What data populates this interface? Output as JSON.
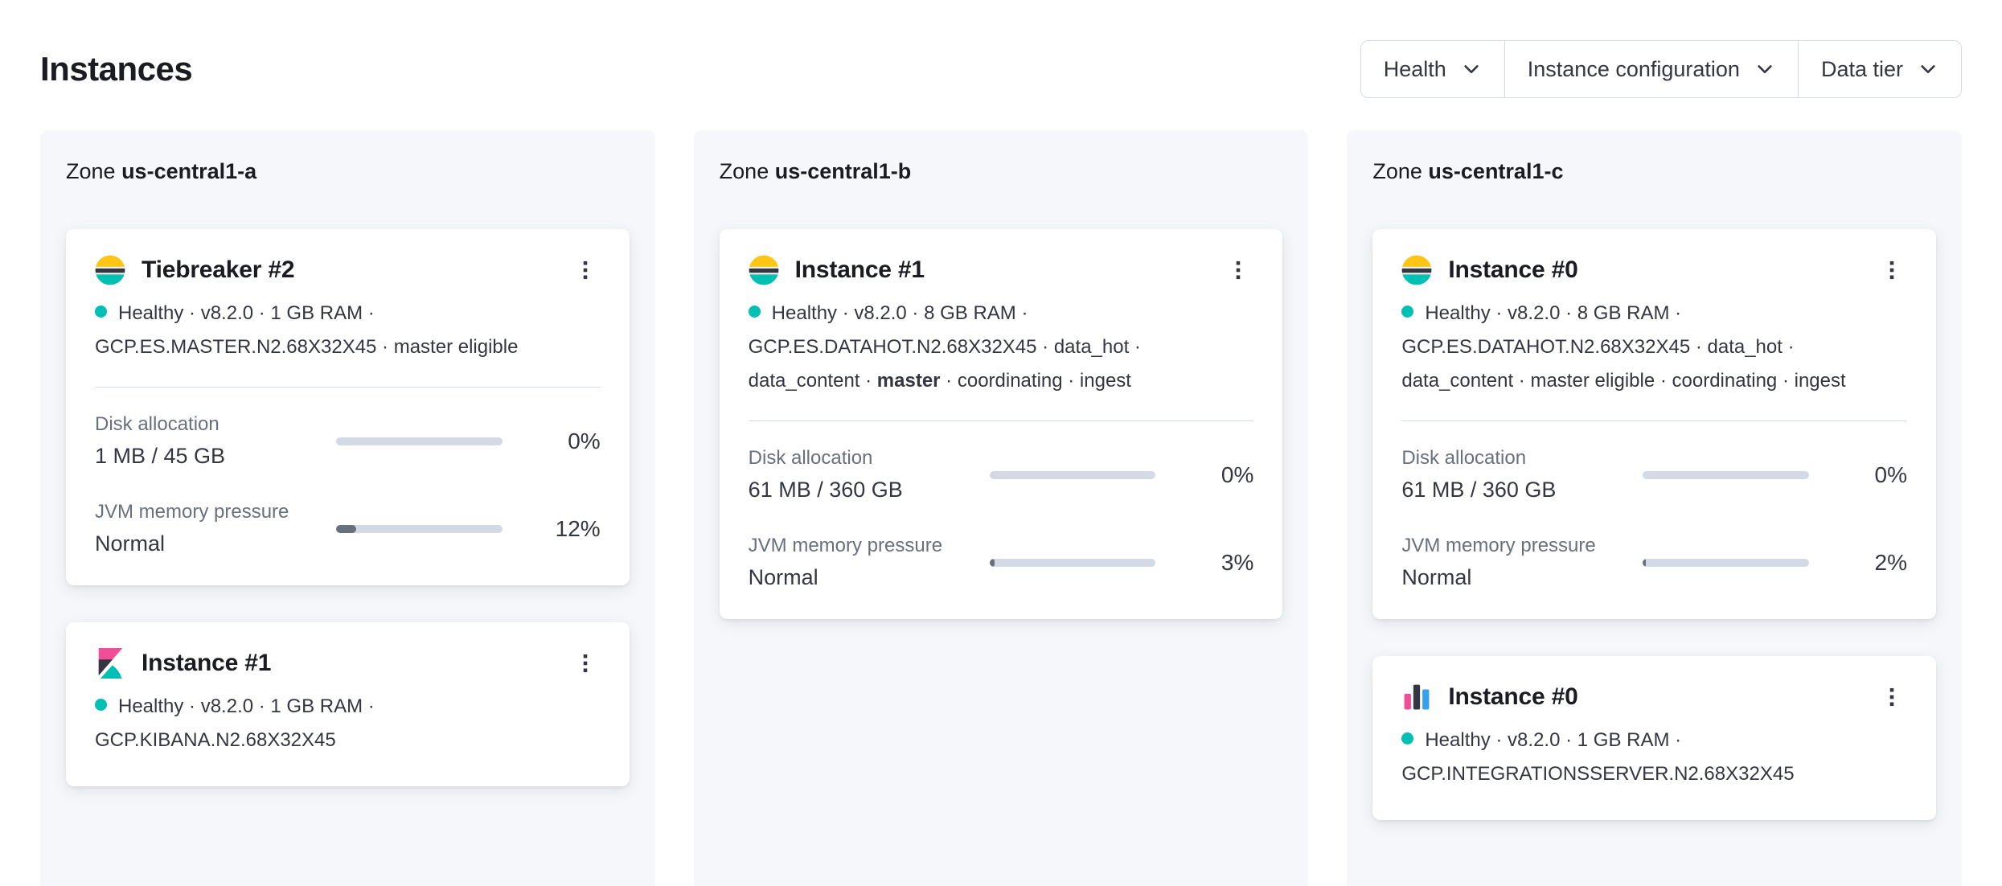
{
  "page": {
    "title": "Instances",
    "zone_word": "Zone"
  },
  "filters": [
    {
      "label": "Health"
    },
    {
      "label": "Instance configuration"
    },
    {
      "label": "Data tier"
    }
  ],
  "colors": {
    "healthy_dot": "#00BFB3",
    "bar_track": "#D3DAE6",
    "bar_fill": "#69707D",
    "panel_bg": "#F5F7FA",
    "elastic_yellow": "#FEC514",
    "elastic_teal": "#00BFB3",
    "elastic_pink": "#F04E98",
    "elastic_dark": "#343741"
  },
  "zones": [
    {
      "name": "us-central1-a",
      "cards": [
        {
          "icon": "elasticsearch-icon",
          "title": "Tiebreaker #2",
          "health": "Healthy",
          "meta_pre": " · v8.2.0 · 1 GB RAM · GCP.ES.MASTER.N2.68X32X45 · master eligible",
          "meta_bold": "",
          "meta_post": "",
          "stats": {
            "disk": {
              "label": "Disk allocation",
              "value": "1 MB / 45 GB",
              "percent": "0%",
              "fill": 0
            },
            "jvm": {
              "label": "JVM memory pressure",
              "value": "Normal",
              "percent": "12%",
              "fill": 12
            }
          }
        },
        {
          "icon": "kibana-icon",
          "title": "Instance #1",
          "health": "Healthy",
          "meta_pre": " · v8.2.0 · 1 GB RAM · GCP.KIBANA.N2.68X32X45",
          "meta_bold": "",
          "meta_post": ""
        }
      ]
    },
    {
      "name": "us-central1-b",
      "cards": [
        {
          "icon": "elasticsearch-icon",
          "title": "Instance #1",
          "health": "Healthy",
          "meta_pre": " · v8.2.0 · 8 GB RAM · GCP.ES.DATAHOT.N2.68X32X45 · data_hot · data_content · ",
          "meta_bold": "master",
          "meta_post": " · coordinating · ingest",
          "stats": {
            "disk": {
              "label": "Disk allocation",
              "value": "61 MB / 360 GB",
              "percent": "0%",
              "fill": 0
            },
            "jvm": {
              "label": "JVM memory pressure",
              "value": "Normal",
              "percent": "3%",
              "fill": 3
            }
          }
        }
      ]
    },
    {
      "name": "us-central1-c",
      "cards": [
        {
          "icon": "elasticsearch-icon",
          "title": "Instance #0",
          "health": "Healthy",
          "meta_pre": " · v8.2.0 · 8 GB RAM · GCP.ES.DATAHOT.N2.68X32X45 · data_hot · data_content · master eligible · coordinating · ingest",
          "meta_bold": "",
          "meta_post": "",
          "stats": {
            "disk": {
              "label": "Disk allocation",
              "value": "61 MB / 360 GB",
              "percent": "0%",
              "fill": 0
            },
            "jvm": {
              "label": "JVM memory pressure",
              "value": "Normal",
              "percent": "2%",
              "fill": 2
            }
          }
        },
        {
          "icon": "integrations-server-icon",
          "title": "Instance #0",
          "health": "Healthy",
          "meta_pre": " · v8.2.0 · 1 GB RAM · GCP.INTEGRATIONSSERVER.N2.68X32X45",
          "meta_bold": "",
          "meta_post": ""
        }
      ]
    }
  ]
}
